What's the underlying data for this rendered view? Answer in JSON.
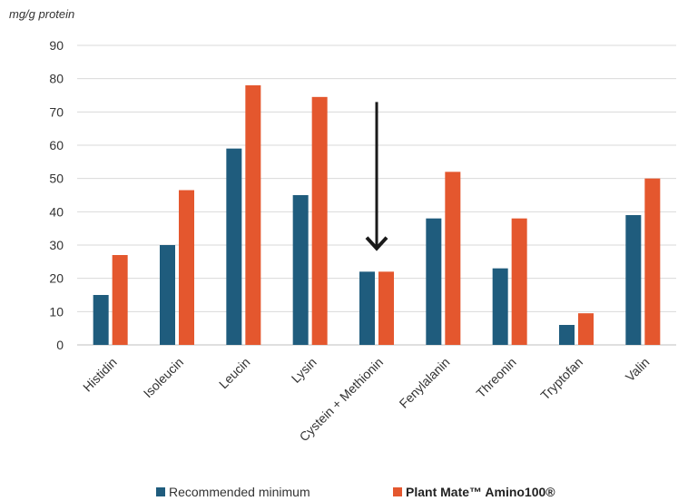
{
  "chart_data": {
    "type": "bar",
    "unit_label": "mg/g protein",
    "categories": [
      "Histidin",
      "Isoleucin",
      "Leucin",
      "Lysin",
      "Cystein + Methionin",
      "Fenylalanin",
      "Threonin",
      "Tryptofan",
      "Valin"
    ],
    "series": [
      {
        "name": "Recommended minimum",
        "color": "#1f5c7d",
        "values": [
          15,
          30,
          59,
          45,
          22,
          38,
          23,
          6,
          39
        ]
      },
      {
        "name": "Plant Mate™ Amino100®",
        "color": "#e4572e",
        "values": [
          27,
          46.5,
          78,
          74.5,
          22,
          52,
          38,
          9.5,
          50
        ]
      }
    ],
    "ylim": [
      0,
      90
    ],
    "yticks": [
      0,
      10,
      20,
      30,
      40,
      50,
      60,
      70,
      80,
      90
    ],
    "grid": true,
    "legend_position": "bottom",
    "annotation": {
      "type": "arrow",
      "direction": "down",
      "category": "Cystein + Methionin",
      "from_value": 73,
      "to_value": 29
    }
  }
}
